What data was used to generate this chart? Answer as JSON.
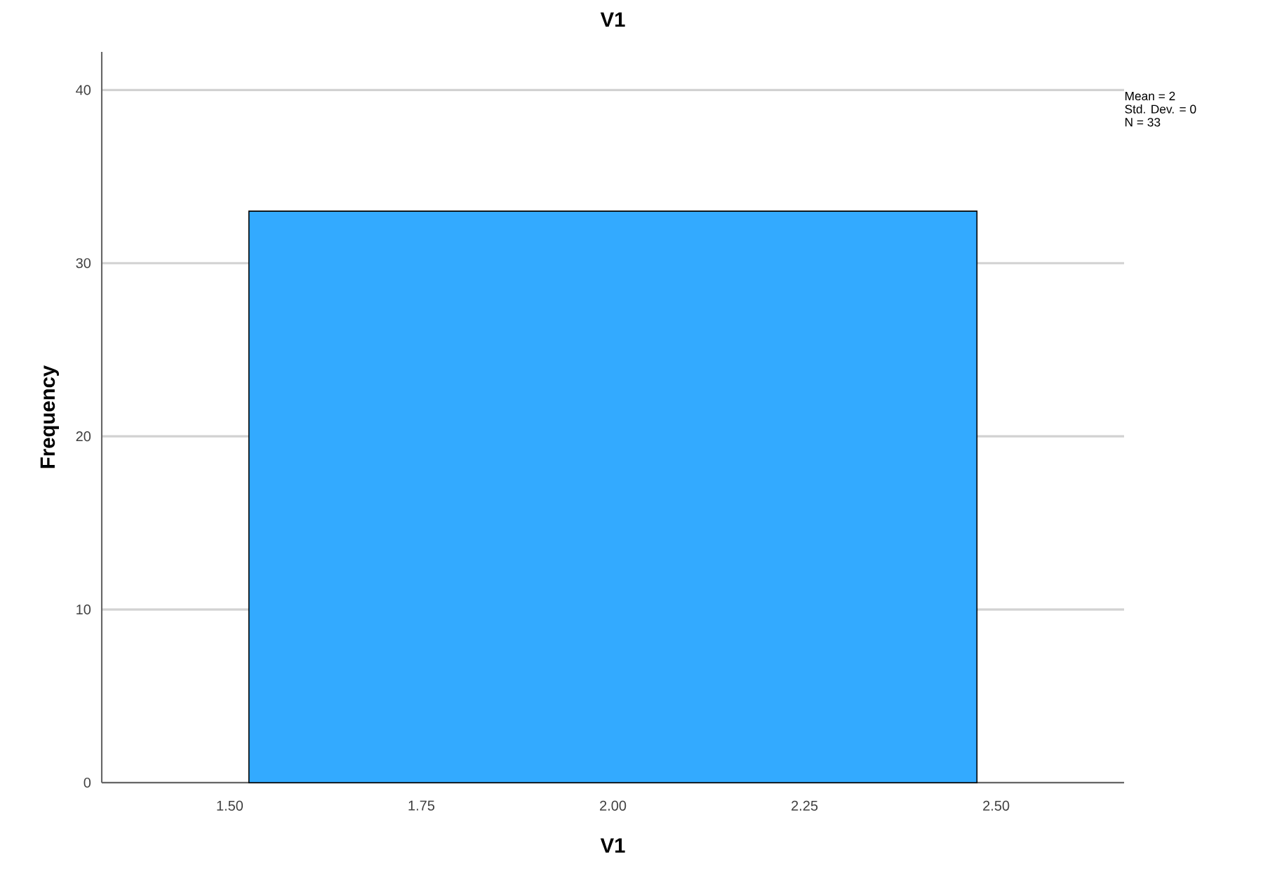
{
  "chart_data": {
    "type": "histogram",
    "title": "V1",
    "xlabel": "V1",
    "ylabel": "Frequency",
    "bins": [
      1.525,
      2.475
    ],
    "values": [
      33
    ],
    "color": "#33aaff",
    "xlim": [
      1.333,
      2.667
    ],
    "ylim": [
      0,
      42.2
    ],
    "xticks": [
      {
        "value": 1.5,
        "label": "1.50"
      },
      {
        "value": 1.75,
        "label": "1.75"
      },
      {
        "value": 2.0,
        "label": "2.00"
      },
      {
        "value": 2.25,
        "label": "2.25"
      },
      {
        "value": 2.5,
        "label": "2.50"
      }
    ],
    "yticks": [
      0,
      10,
      20,
      30,
      40
    ],
    "grid": "y",
    "annotations": [
      "Mean = 2",
      "Std. Dev. = 0",
      "N = 33"
    ]
  }
}
